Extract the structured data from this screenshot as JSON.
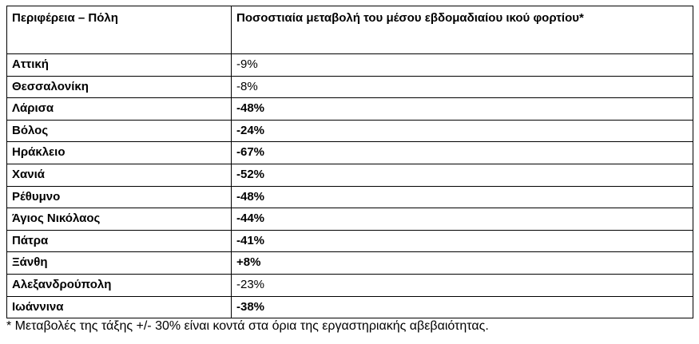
{
  "table": {
    "header": [
      "Περιφέρεια – Πόλη",
      "Ποσοστιαία μεταβολή του μέσου εβδομαδιαίου ικού φορτίου*"
    ],
    "rows": [
      [
        "Αττική",
        "-9%"
      ],
      [
        "Θεσσαλονίκη",
        "-8%"
      ],
      [
        "Λάρισα",
        "-48%"
      ],
      [
        "Βόλος",
        "-24%"
      ],
      [
        "Ηράκλειο",
        "-67%"
      ],
      [
        "Χανιά",
        "-52%"
      ],
      [
        "Ρέθυμνο",
        "-48%"
      ],
      [
        "Άγιος Νικόλαος",
        "-44%"
      ],
      [
        "Πάτρα",
        "-41%"
      ],
      [
        "Ξάνθη",
        "+8%"
      ],
      [
        "Αλεξανδρούπολη",
        "-23%"
      ],
      [
        "Ιωάννινα",
        "-38%"
      ]
    ]
  },
  "footnote": "* Μεταβολές της τάξης +/- 30% είναι κοντά στα όρια της εργαστηριακής αβεβαιότητας."
}
